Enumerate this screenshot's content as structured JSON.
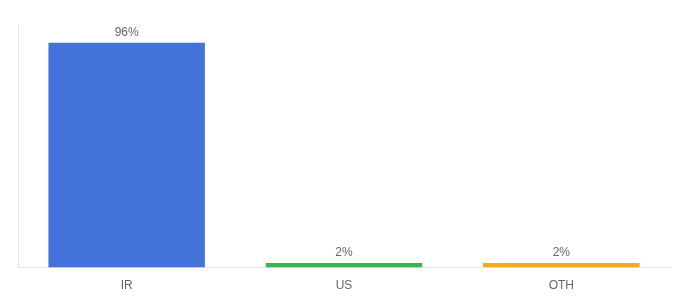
{
  "chart_data": {
    "type": "bar",
    "categories": [
      "IR",
      "US",
      "OTH"
    ],
    "values": [
      96,
      2,
      2
    ],
    "value_labels": [
      "96%",
      "2%",
      "2%"
    ],
    "colors": [
      "#4472db",
      "#3ab54a",
      "#f5a623"
    ],
    "ylim": [
      0,
      104
    ],
    "yticks": [],
    "grid": false,
    "legend": false,
    "tick_labels": "x"
  }
}
